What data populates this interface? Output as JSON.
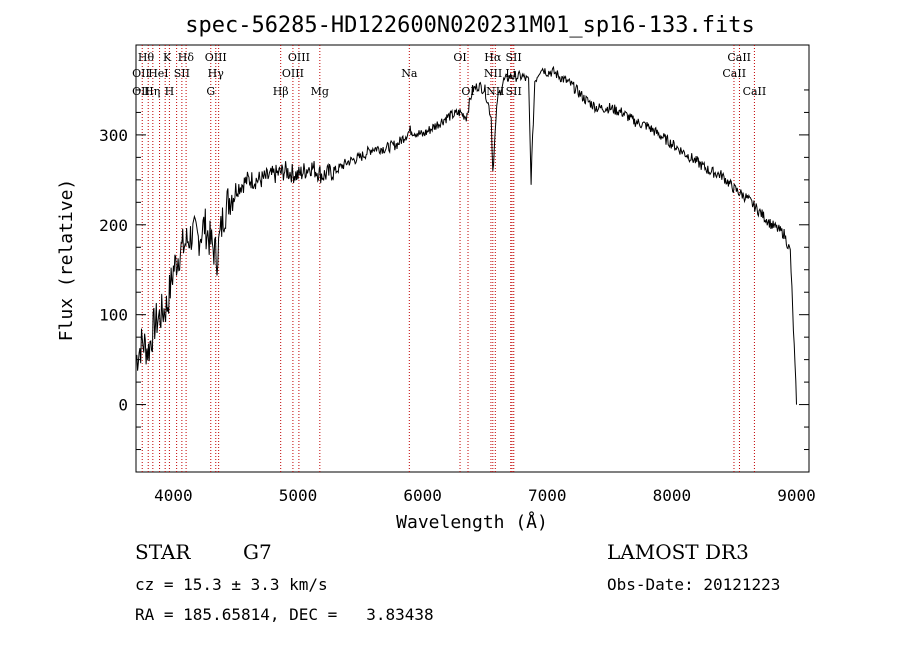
{
  "chart_data": {
    "type": "line",
    "title": "spec-56285-HD122600N020231M01_sp16-133.fits",
    "xlabel": "Wavelength (Å)",
    "ylabel": "Flux (relative)",
    "xlim": [
      3700,
      9100
    ],
    "ylim": [
      -75,
      400
    ],
    "xticks": [
      4000,
      5000,
      6000,
      7000,
      8000,
      9000
    ],
    "yticks": [
      0,
      100,
      200,
      300
    ],
    "series": [
      {
        "name": "flux",
        "x": [
          3700,
          3750,
          3800,
          3850,
          3900,
          3950,
          4000,
          4050,
          4100,
          4150,
          4200,
          4250,
          4300,
          4350,
          4400,
          4450,
          4500,
          4550,
          4600,
          4700,
          4800,
          4900,
          5000,
          5100,
          5200,
          5300,
          5400,
          5500,
          5600,
          5700,
          5800,
          5900,
          6000,
          6100,
          6200,
          6300,
          6350,
          6400,
          6450,
          6500,
          6550,
          6563,
          6600,
          6650,
          6700,
          6750,
          6800,
          6850,
          6870,
          6900,
          6950,
          7000,
          7050,
          7100,
          7200,
          7300,
          7400,
          7500,
          7600,
          7700,
          7800,
          7900,
          8000,
          8100,
          8200,
          8300,
          8400,
          8500,
          8600,
          8700,
          8800,
          8900,
          8950,
          9000
        ],
        "y": [
          50,
          70,
          60,
          90,
          100,
          110,
          150,
          170,
          180,
          190,
          185,
          200,
          180,
          165,
          210,
          230,
          240,
          245,
          250,
          250,
          255,
          260,
          255,
          265,
          255,
          260,
          270,
          275,
          285,
          285,
          290,
          305,
          300,
          310,
          320,
          325,
          320,
          350,
          355,
          350,
          320,
          260,
          340,
          360,
          365,
          365,
          365,
          360,
          250,
          360,
          375,
          370,
          370,
          365,
          355,
          340,
          330,
          330,
          325,
          315,
          310,
          300,
          290,
          280,
          270,
          260,
          255,
          240,
          230,
          215,
          200,
          190,
          170,
          0
        ]
      }
    ],
    "line_markers": {
      "top_row": [
        "Hθ",
        "K",
        "Hδ",
        "OIII",
        "OIII",
        "OI",
        "Hα",
        "SII",
        "CaII"
      ],
      "second_row": [
        "OII",
        "HeI",
        "SII",
        "Hγ",
        "OIII",
        "Na",
        "NII",
        "Li",
        "CaII"
      ],
      "third_row": [
        "OII",
        "Hη",
        "H",
        "G",
        "Hβ",
        "Mg",
        "OI",
        "NII",
        "SII",
        "CaII"
      ]
    }
  },
  "info": {
    "class": "STAR",
    "subclass": "G7",
    "survey": "LAMOST DR3",
    "cz": "cz = 15.3 ± 3.3 km/s",
    "obs_date": "Obs-Date: 20121223",
    "radec": "RA = 185.65814, DEC =   3.83438"
  }
}
